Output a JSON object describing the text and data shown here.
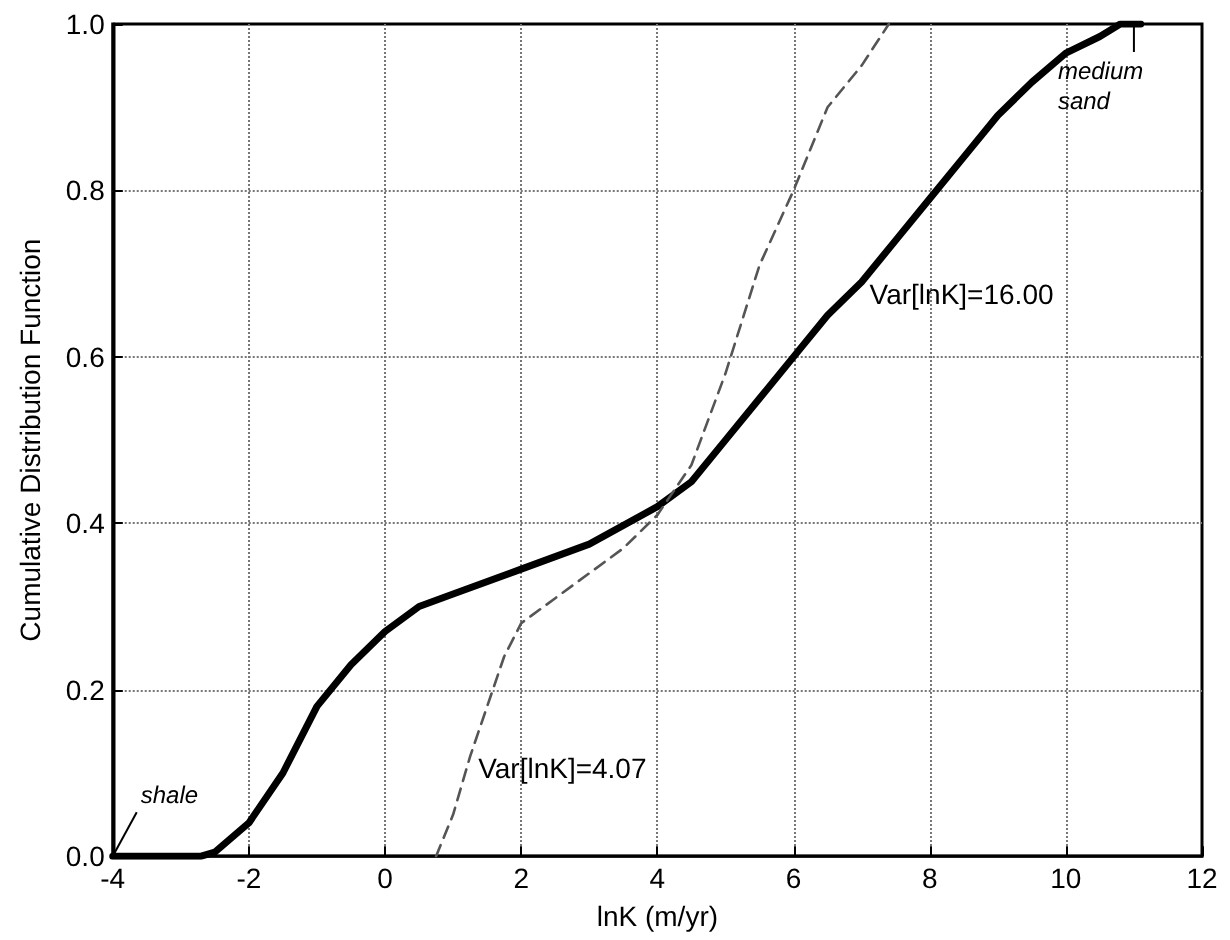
{
  "chart_data": {
    "type": "line",
    "xlabel": "lnK (m/yr)",
    "ylabel": "Cumulative Distribution Function",
    "series": [
      {
        "color": "#000000",
        "line_style": "solid",
        "x": [
          -4,
          -2.7,
          -2.5,
          -2,
          -1.5,
          -1,
          -0.5,
          0,
          0.5,
          1,
          2,
          3,
          4,
          4.5,
          5,
          5.5,
          6,
          6.5,
          7,
          7.5,
          8,
          8.5,
          9,
          9.5,
          10,
          10.5,
          10.8,
          11.1
        ],
        "values": [
          0,
          0,
          0.005,
          0.04,
          0.1,
          0.18,
          0.23,
          0.27,
          0.3,
          0.315,
          0.345,
          0.375,
          0.42,
          0.45,
          0.5,
          0.55,
          0.6,
          0.65,
          0.69,
          0.74,
          0.79,
          0.84,
          0.89,
          0.93,
          0.965,
          0.985,
          1,
          1
        ]
      },
      {
        "color": "#555555",
        "line_style": "dashed",
        "x": [
          0.75,
          1,
          1.25,
          1.5,
          1.75,
          2,
          2.5,
          3,
          3.5,
          4,
          4.5,
          5,
          5.5,
          6,
          6.5,
          7,
          7.4
        ],
        "values": [
          0,
          0.05,
          0.12,
          0.18,
          0.24,
          0.28,
          0.31,
          0.34,
          0.37,
          0.41,
          0.47,
          0.58,
          0.71,
          0.8,
          0.9,
          0.95,
          1
        ]
      }
    ],
    "annotations": [
      {
        "text": "shale",
        "x": -4,
        "y": 0
      },
      {
        "text": "medium sand",
        "x": 11,
        "y": 1
      },
      {
        "text": "Var[lnK]=16.00",
        "x": 7,
        "y": 0.69
      },
      {
        "text": "Var[lnK]=4.07",
        "x": 1.25,
        "y": 0.12
      }
    ],
    "xlim": [
      -4,
      12
    ],
    "xticks": [
      -4,
      -2,
      0,
      2,
      4,
      6,
      8,
      10,
      12
    ],
    "ylim": [
      0,
      1
    ],
    "yticks": [
      {
        "value": 0,
        "label": "0.0"
      },
      {
        "value": 0.2,
        "label": "0.2"
      },
      {
        "value": 0.4,
        "label": "0.4"
      },
      {
        "value": 0.6,
        "label": "0.6"
      },
      {
        "value": 0.8,
        "label": "0.8"
      },
      {
        "value": 1,
        "label": "1.0"
      }
    ],
    "grid": true,
    "marker": "none"
  }
}
